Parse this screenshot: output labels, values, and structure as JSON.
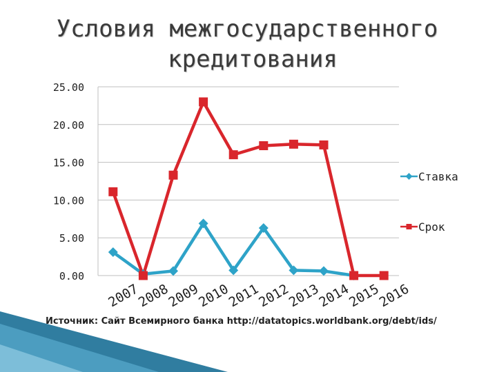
{
  "slide": {
    "title_line1": "Условия межгосударственного",
    "title_line2": "кредитования",
    "source_note": "Источник: Сайт Всемирного банка http://datatopics.worldbank.org/debt/ids/"
  },
  "colors": {
    "stavka": "#2ea3c8",
    "srok": "#d9262c",
    "grid": "#bfbfbf",
    "axis_text": "#222222",
    "corner_accent": "#1a6f96"
  },
  "chart_data": {
    "type": "line",
    "categories": [
      "2007",
      "2008",
      "2009",
      "2010",
      "2011",
      "2012",
      "2013",
      "2014",
      "2015",
      "2016"
    ],
    "y_ticks": [
      "0.00",
      "5.00",
      "10.00",
      "15.00",
      "20.00",
      "25.00"
    ],
    "ylim": [
      0,
      25
    ],
    "grid": true,
    "legend_position": "right",
    "series": [
      {
        "name": "Ставка",
        "marker": "diamond",
        "color": "#2ea3c8",
        "values": [
          3.1,
          0.2,
          0.6,
          6.9,
          0.7,
          6.3,
          0.7,
          0.6,
          0.0,
          null
        ]
      },
      {
        "name": "Срок",
        "marker": "square",
        "color": "#d9262c",
        "values": [
          11.1,
          0.0,
          13.3,
          23.0,
          16.0,
          17.2,
          17.4,
          17.3,
          0.0,
          0.0
        ]
      }
    ]
  }
}
